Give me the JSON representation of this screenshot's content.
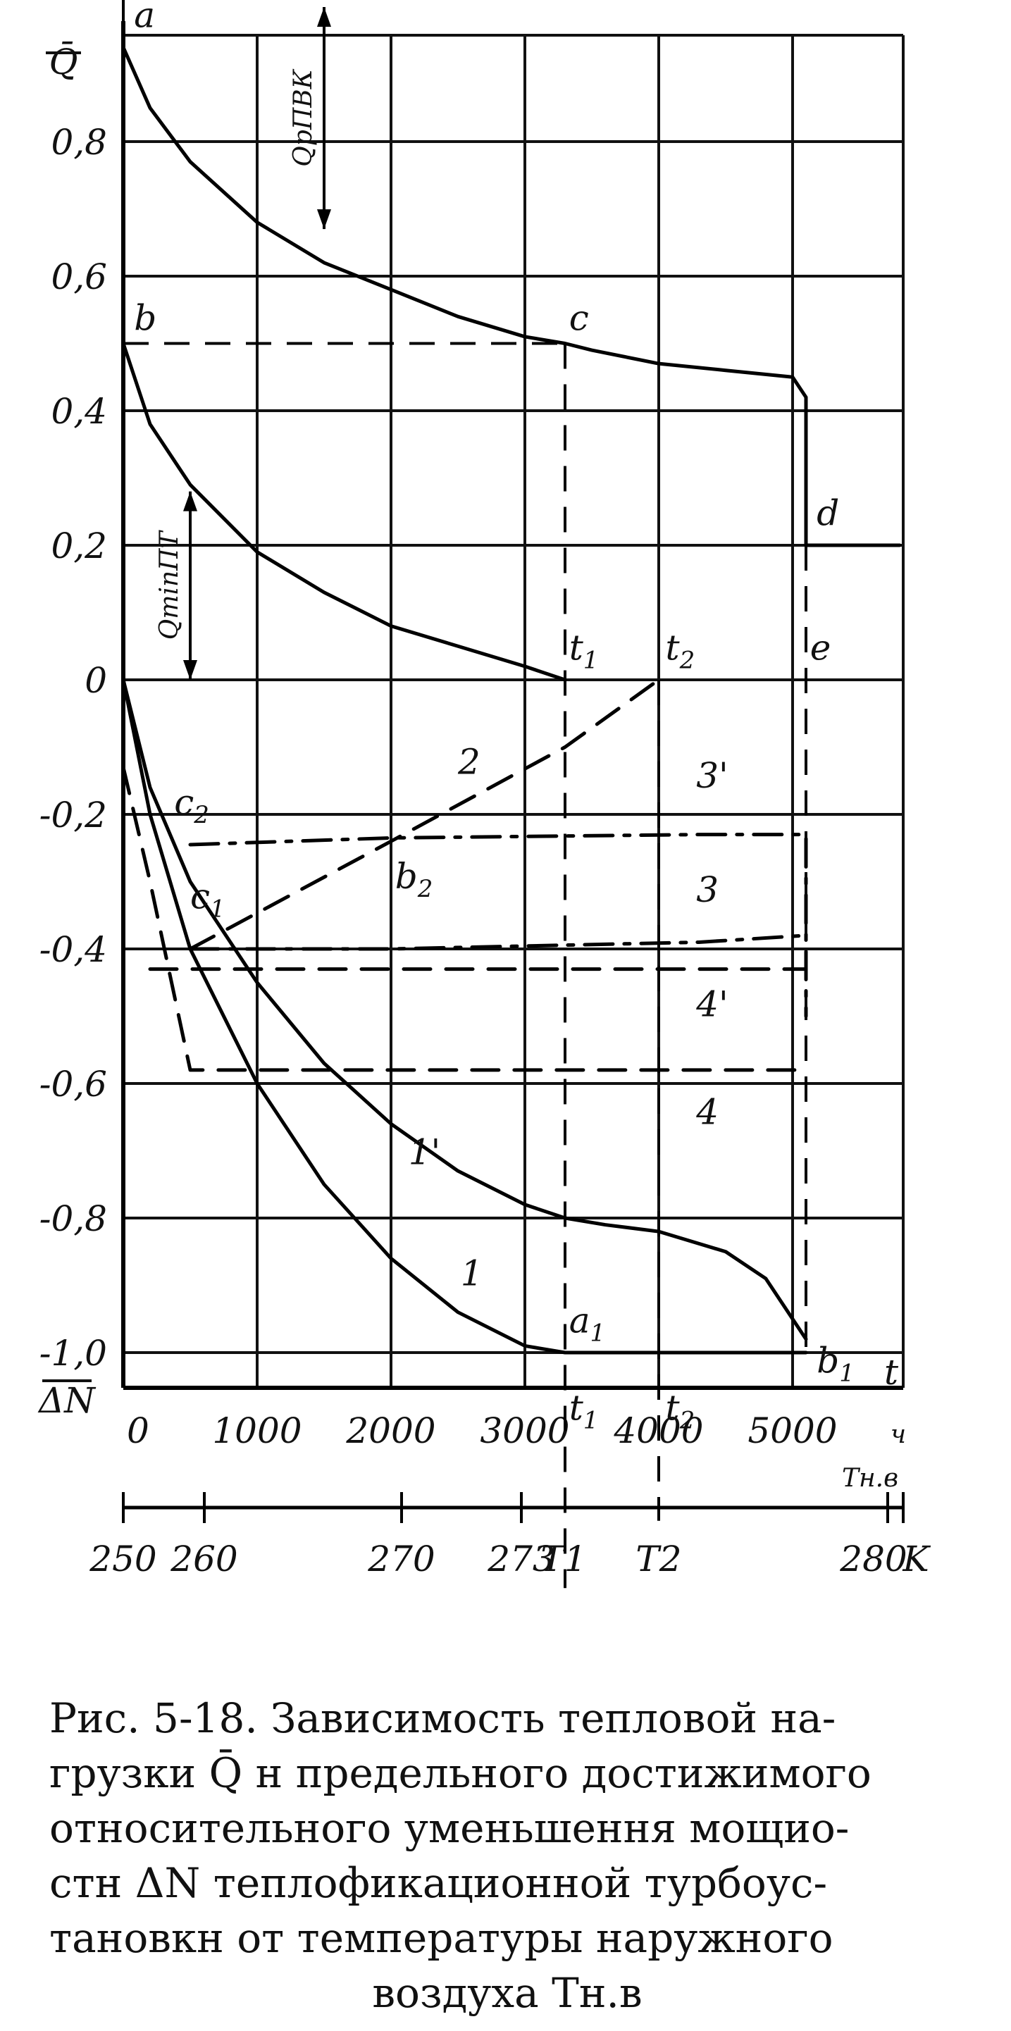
{
  "chart_data": {
    "type": "line",
    "x_ticks": [
      "0",
      "1000",
      "2000",
      "3000",
      "4000",
      "5000"
    ],
    "x_unit": "ч",
    "x_name": "t",
    "temp_ticks": [
      "250",
      "260",
      "270",
      "273",
      "280",
      "K"
    ],
    "temp_marks": [
      "T1",
      "T2"
    ],
    "temp_name": "Tн.в",
    "y_ticks": [
      "0,8",
      "0,6",
      "0,4",
      "0,2",
      "0",
      "-0,2",
      "-0,4",
      "-0,6",
      "-0,8",
      "-1,0"
    ],
    "y_top_label": "Q̄",
    "y_bottom_label": "ΔN",
    "x_range": [
      0,
      6000
    ],
    "y_range": [
      -1.0,
      1.0
    ],
    "grid": true,
    "series": [
      {
        "name": "Q̄",
        "style": "solid",
        "x": [
          0,
          200,
          500,
          1000,
          1500,
          2000,
          2500,
          3000,
          3300,
          3500,
          4000,
          4500,
          5000,
          5100,
          5100,
          5800
        ],
        "y": [
          0.94,
          0.85,
          0.77,
          0.68,
          0.62,
          0.58,
          0.54,
          0.51,
          0.5,
          0.49,
          0.47,
          0.46,
          0.45,
          0.42,
          0.2,
          0.2
        ]
      },
      {
        "name": "Q̄пт",
        "style": "solid",
        "x": [
          0,
          200,
          500,
          1000,
          1500,
          2000,
          2500,
          3000,
          3300
        ],
        "y": [
          0.5,
          0.38,
          0.29,
          0.19,
          0.13,
          0.08,
          0.05,
          0.02,
          0.0
        ]
      },
      {
        "name": "1",
        "style": "solid",
        "x": [
          0,
          200,
          500,
          1000,
          1500,
          2000,
          2500,
          3000,
          3300,
          4000,
          5100
        ],
        "y": [
          0.0,
          -0.2,
          -0.4,
          -0.6,
          -0.75,
          -0.86,
          -0.94,
          -0.99,
          -1.0,
          -1.0,
          -1.0
        ]
      },
      {
        "name": "1'",
        "style": "solid",
        "x": [
          0,
          200,
          500,
          1000,
          1500,
          2000,
          2500,
          3000,
          3300,
          3600,
          4000,
          4500,
          4800,
          5100
        ],
        "y": [
          0.0,
          -0.16,
          -0.3,
          -0.45,
          -0.57,
          -0.66,
          -0.73,
          -0.78,
          -0.8,
          -0.81,
          -0.82,
          -0.85,
          -0.89,
          -0.98
        ]
      },
      {
        "name": "2",
        "style": "dashed",
        "x": [
          500,
          2000,
          3300,
          4000
        ],
        "y": [
          -0.4,
          -0.24,
          -0.1,
          0.0
        ]
      },
      {
        "name": "3'",
        "style": "dashdot",
        "x": [
          500,
          2000,
          4300,
          5100,
          5100
        ],
        "y": [
          -0.245,
          -0.235,
          -0.23,
          -0.23,
          -0.5
        ]
      },
      {
        "name": "3",
        "style": "dashdot",
        "x": [
          500,
          2000,
          4300,
          5100
        ],
        "y": [
          -0.4,
          -0.4,
          -0.39,
          -0.38
        ]
      },
      {
        "name": "4'",
        "style": "dashed",
        "x": [
          200,
          5100
        ],
        "y": [
          -0.43,
          -0.43
        ]
      },
      {
        "name": "4",
        "style": "dashed",
        "x": [
          0,
          200,
          500,
          5100
        ],
        "y": [
          -0.13,
          -0.3,
          -0.58,
          -0.58
        ]
      }
    ],
    "reference_lines": [
      {
        "kind": "horizontal",
        "y": 0.5,
        "x": [
          0,
          3300
        ],
        "style": "dashed"
      },
      {
        "kind": "vertical",
        "x": 3300,
        "y": [
          0.5,
          -1.35
        ],
        "style": "dashed"
      },
      {
        "kind": "vertical",
        "x": 4000,
        "y": [
          0.0,
          -1.25
        ],
        "style": "dashed"
      },
      {
        "kind": "vertical",
        "x": 5100,
        "y": [
          0.2,
          -1.0
        ],
        "style": "dashed"
      }
    ],
    "annotations": [
      {
        "text": "a",
        "x": 80,
        "y": 0.97
      },
      {
        "text": "b",
        "x": 80,
        "y": 0.52
      },
      {
        "text": "c",
        "x": 3330,
        "y": 0.52
      },
      {
        "text": "d",
        "x": 5180,
        "y": 0.23
      },
      {
        "text": "e",
        "x": 5130,
        "y": 0.03
      },
      {
        "text": "t1",
        "x": 3330,
        "y": 0.03
      },
      {
        "text": "t2",
        "x": 4050,
        "y": 0.03
      },
      {
        "text": "c2",
        "x": 380,
        "y": -0.2
      },
      {
        "text": "c1",
        "x": 500,
        "y": -0.34
      },
      {
        "text": "b2",
        "x": 2030,
        "y": -0.31
      },
      {
        "text": "2",
        "x": 2500,
        "y": -0.14
      },
      {
        "text": "3'",
        "x": 4280,
        "y": -0.16
      },
      {
        "text": "3",
        "x": 4280,
        "y": -0.33
      },
      {
        "text": "4'",
        "x": 4280,
        "y": -0.5
      },
      {
        "text": "4",
        "x": 4280,
        "y": -0.66
      },
      {
        "text": "1'",
        "x": 2130,
        "y": -0.72
      },
      {
        "text": "1",
        "x": 2520,
        "y": -0.9
      },
      {
        "text": "a1",
        "x": 3330,
        "y": -0.97
      },
      {
        "text": "b1",
        "x": 5180,
        "y": -1.03
      },
      {
        "text": "t1",
        "x": 3330,
        "y": -1.1
      },
      {
        "text": "t2",
        "x": 4050,
        "y": -1.1
      }
    ],
    "range_markers": [
      {
        "label": "QрПВК",
        "x": 1500,
        "y": [
          0.67,
          1.0
        ]
      },
      {
        "label": "QminПТ",
        "x": 500,
        "y": [
          0.0,
          0.28
        ]
      }
    ]
  },
  "caption": {
    "lines": [
      "Рис. 5-18. Зависимость тепловой на-",
      "грузки Q̄ н предельного достижимого",
      "относительного уменьшення мощио-",
      "стн ΔN теплофикационной турбоус-",
      "тановкн от температуры наружного",
      "воздуха Tн.в"
    ]
  }
}
